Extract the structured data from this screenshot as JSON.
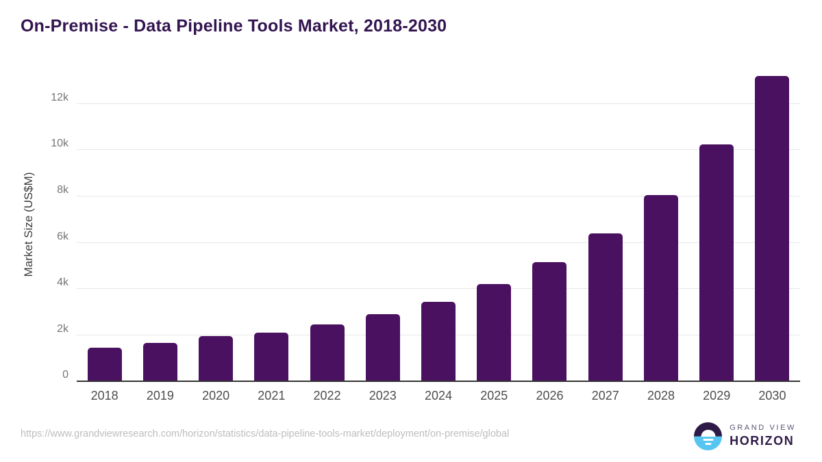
{
  "page": {
    "title": "On-Premise - Data Pipeline Tools Market, 2018-2030"
  },
  "chart_data": {
    "type": "bar",
    "title": "On-Premise - Data Pipeline Tools Market, 2018-2030",
    "categories": [
      "2018",
      "2019",
      "2020",
      "2021",
      "2022",
      "2023",
      "2024",
      "2025",
      "2026",
      "2027",
      "2028",
      "2029",
      "2030"
    ],
    "values": [
      1450,
      1650,
      1950,
      2100,
      2450,
      2900,
      3450,
      4200,
      5150,
      6400,
      8050,
      10250,
      13200
    ],
    "xlabel": "",
    "ylabel": "Market Size (US$M)",
    "ylim": [
      0,
      13540
    ],
    "yticks": [
      0,
      2000,
      4000,
      6000,
      8000,
      10000,
      12000
    ],
    "ytick_labels": [
      "0",
      "2k",
      "4k",
      "6k",
      "8k",
      "10k",
      "12k"
    ],
    "grid": "horizontal-only",
    "legend": "none",
    "bar_color": "#4b1161"
  },
  "footer": {
    "source_url": "https://www.grandviewresearch.com/horizon/statistics/data-pipeline-tools-market/deployment/on-premise/global",
    "logo_line1": "GRAND VIEW",
    "logo_line2": "HORIZON"
  },
  "colors": {
    "bar": "#4b1161",
    "title": "#331450",
    "gridline": "#e7e7e7",
    "axis_line": "#333333",
    "y_tick_label": "#757575",
    "x_tick_label": "#4d4d4d",
    "y_axis_title": "#3d3d3d",
    "source_url": "#bdbdbd",
    "logo_purple": "#2e1a47",
    "logo_blue": "#56c5f0"
  }
}
